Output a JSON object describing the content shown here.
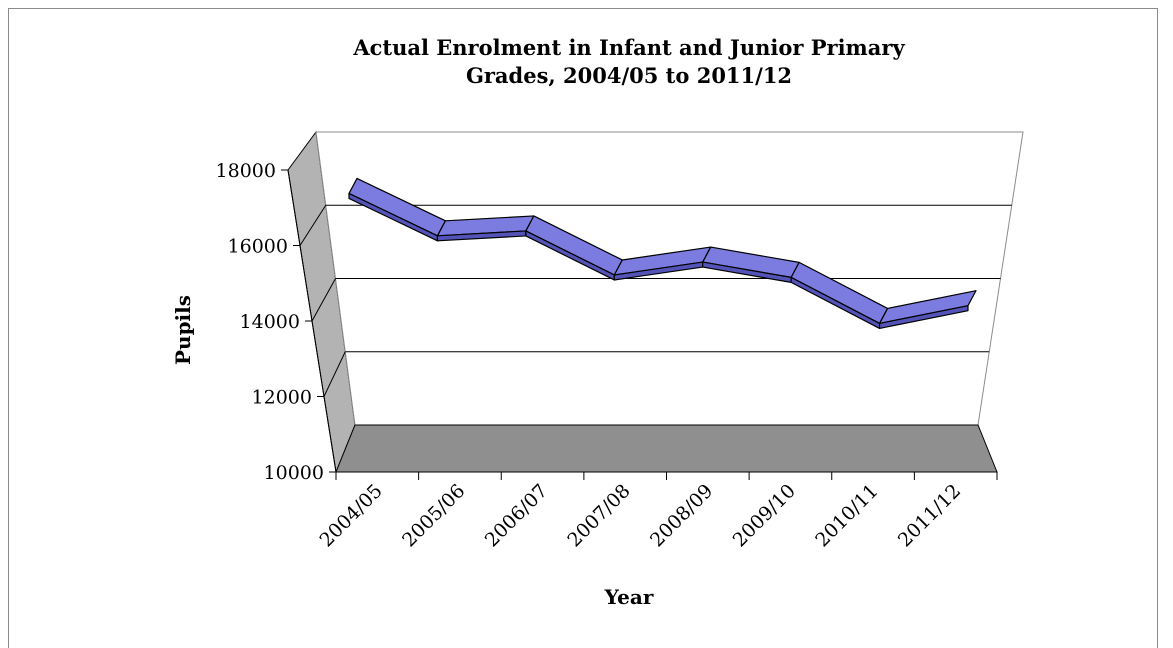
{
  "chart_data": {
    "type": "line",
    "title_lines": [
      "Actual Enrolment in Infant and Junior Primary",
      "Grades, 2004/05 to 2011/12"
    ],
    "xlabel": "Year",
    "ylabel": "Pupils",
    "categories": [
      "2004/05",
      "2005/06",
      "2006/07",
      "2007/08",
      "2008/09",
      "2009/10",
      "2010/11",
      "2011/12"
    ],
    "series": [
      {
        "values": [
          16900,
          15850,
          15970,
          14880,
          15200,
          14820,
          13680,
          14120
        ]
      }
    ],
    "ylim": [
      10000,
      18000
    ],
    "yticks": [
      10000,
      12000,
      14000,
      16000,
      18000
    ],
    "grid": true,
    "legend": "none",
    "style": "3d",
    "colors": {
      "line_face": "#7b7be0",
      "line_edge": "#000000",
      "floor": "#8f8f8f",
      "wall": "#b3b3b3",
      "gridline": "#000000"
    }
  }
}
